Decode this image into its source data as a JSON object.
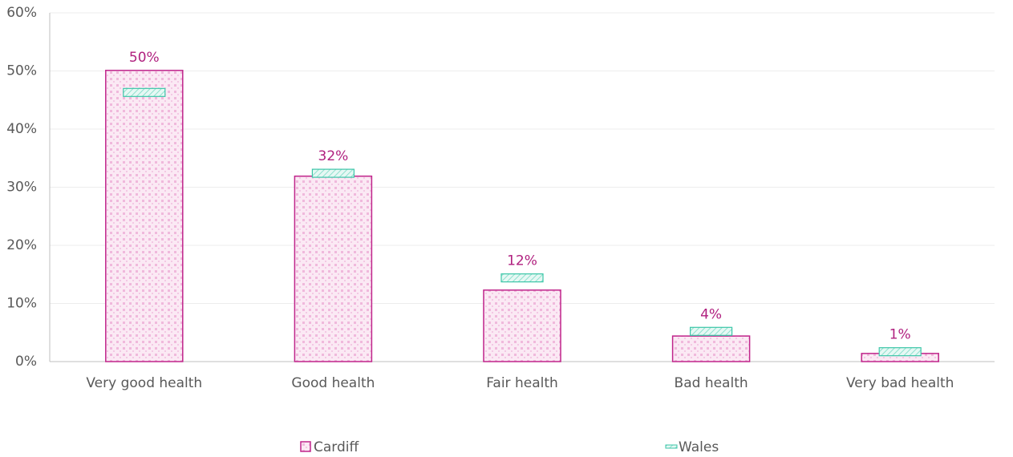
{
  "chart_data": {
    "type": "bar",
    "categories": [
      "Very good health",
      "Good health",
      "Fair health",
      "Bad health",
      "Very bad health"
    ],
    "series": [
      {
        "name": "Cardiff",
        "color": "#c0258b",
        "values": [
          50.1,
          31.9,
          12.3,
          4.4,
          1.4
        ],
        "value_labels": [
          "50%",
          "32%",
          "12%",
          "4%",
          "1%"
        ]
      },
      {
        "name": "Wales",
        "color": "#3cc6a8",
        "values": [
          46.3,
          32.4,
          14.4,
          5.2,
          1.7
        ]
      }
    ],
    "ylim": [
      0,
      60
    ],
    "yticks": [
      {
        "value": 0,
        "label": "0%"
      },
      {
        "value": 10,
        "label": "10%"
      },
      {
        "value": 20,
        "label": "20%"
      },
      {
        "value": 30,
        "label": "30%"
      },
      {
        "value": 40,
        "label": "40%"
      },
      {
        "value": 50,
        "label": "50%"
      },
      {
        "value": 60,
        "label": "60%"
      }
    ],
    "grid": true,
    "legend": "bottom"
  }
}
